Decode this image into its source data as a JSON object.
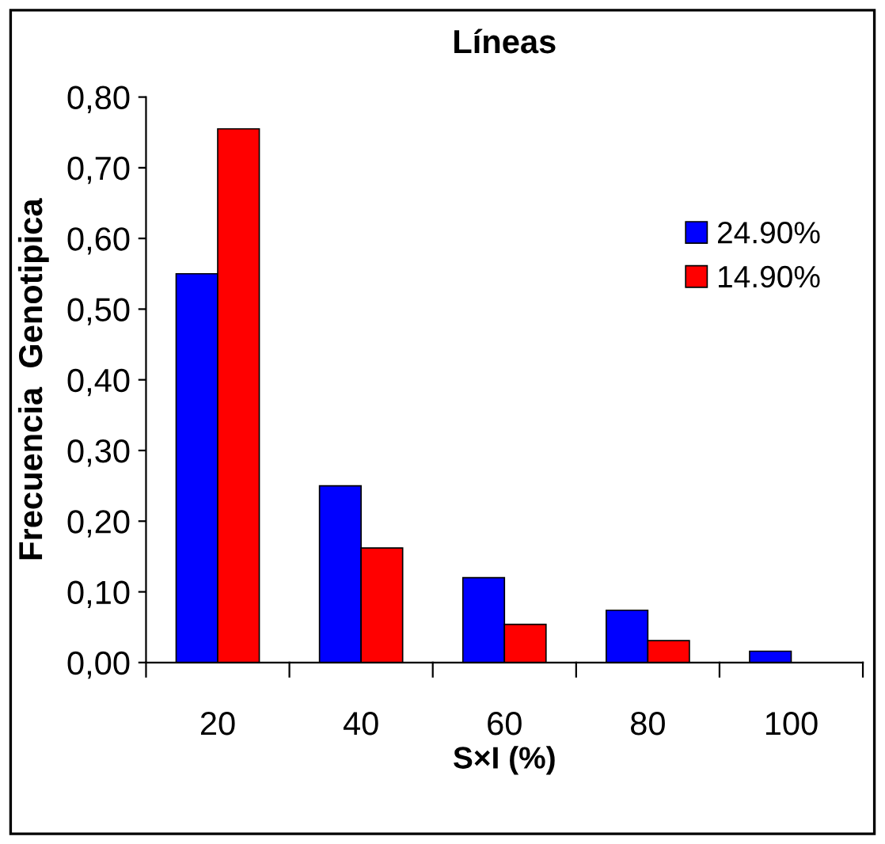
{
  "chart_data": {
    "type": "bar",
    "title": "Líneas",
    "xlabel": "S×I (%)",
    "ylabel": "Frecuencia  Genotipica",
    "categories": [
      "20",
      "40",
      "60",
      "80",
      "100"
    ],
    "series": [
      {
        "name": "24.90%",
        "color": "#0000ff",
        "values": [
          0.55,
          0.25,
          0.12,
          0.074,
          0.016
        ]
      },
      {
        "name": "14.90%",
        "color": "#ff0000",
        "values": [
          0.755,
          0.162,
          0.054,
          0.031,
          null
        ]
      }
    ],
    "ylim": [
      0,
      0.8
    ],
    "yticks": [
      {
        "value": 0,
        "label": "0,00"
      },
      {
        "value": 0.1,
        "label": "0,10"
      },
      {
        "value": 0.2,
        "label": "0,20"
      },
      {
        "value": 0.3,
        "label": "0,30"
      },
      {
        "value": 0.4,
        "label": "0,40"
      },
      {
        "value": 0.5,
        "label": "0,50"
      },
      {
        "value": 0.6,
        "label": "0,60"
      },
      {
        "value": 0.7,
        "label": "0,70"
      },
      {
        "value": 0.8,
        "label": "0,80"
      }
    ],
    "grid": false,
    "legend": "top right"
  }
}
